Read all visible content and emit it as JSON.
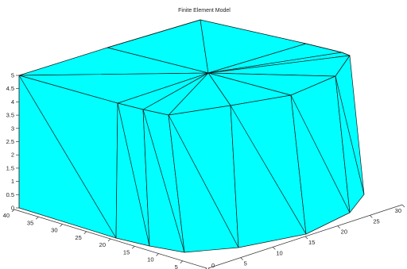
{
  "chart_data": {
    "type": "3d-surface",
    "title": "Finite Element Model",
    "face_color": "#00ffff",
    "edge_color": "#1a1a1a",
    "axes": {
      "z": {
        "ticks": [
          "0",
          "0.5",
          "1",
          "1.5",
          "2",
          "2.5",
          "3",
          "3.5",
          "4",
          "4.5",
          "5"
        ],
        "range": [
          0,
          5
        ]
      },
      "y": {
        "ticks": [
          "40",
          "35",
          "30",
          "25",
          "20",
          "15",
          "10",
          "5",
          "0"
        ],
        "range": [
          0,
          40
        ]
      },
      "x": {
        "ticks": [
          "0",
          "5",
          "10",
          "15",
          "20",
          "25",
          "30"
        ],
        "range": [
          0,
          30
        ]
      }
    },
    "grid": false
  }
}
